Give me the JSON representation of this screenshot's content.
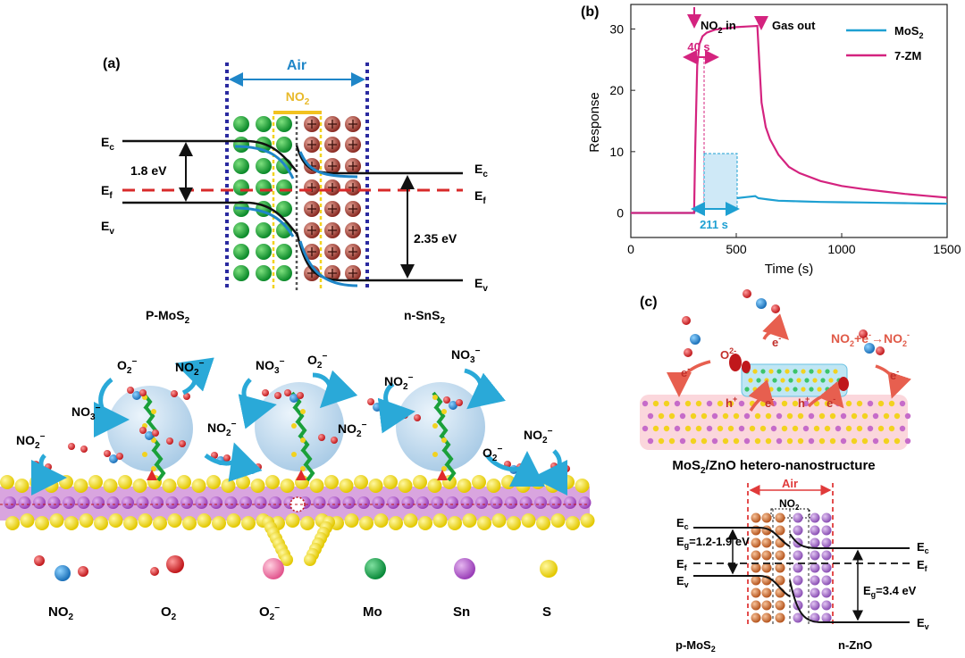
{
  "panel_a": {
    "label": "(a)",
    "air": "Air",
    "no2": "NO",
    "no2_sub": "2",
    "ec_left": "E",
    "ec_left_sub": "c",
    "ef_left": "E",
    "ef_left_sub": "f",
    "ev_left": "E",
    "ev_left_sub": "v",
    "ec_right": "E",
    "ec_right_sub": "c",
    "ef_right": "E",
    "ef_right_sub": "f",
    "ev_right": "E",
    "ev_right_sub": "v",
    "gap_left": "1.8 eV",
    "gap_right": "2.35 eV",
    "p_label": "P-MoS",
    "p_label_sub": "2",
    "n_label": "n-SnS",
    "n_label_sub": "2"
  },
  "panel_b": {
    "label": "(b)",
    "ann_no2_in": "NO",
    "ann_no2_in_sub": "2",
    "ann_no2_in_tail": " in",
    "ann_gas_out": "Gas out",
    "ann_40s": "40 s",
    "ann_211s": "211 s",
    "colors": {
      "mos2": "#1ea0d2",
      "zm": "#d4237f"
    }
  },
  "chart_data": {
    "type": "line",
    "xlabel": "Time (s)",
    "ylabel": "Response",
    "xlim": [
      0,
      1500
    ],
    "ylim": [
      -4,
      34
    ],
    "x_ticks": [
      "0",
      "500",
      "1000",
      "1500"
    ],
    "y_ticks": [
      "0",
      "10",
      "20",
      "30"
    ],
    "legend_position": "top-right",
    "series": [
      {
        "name": "MoS2",
        "legend_label": "MoS",
        "legend_sub": "2",
        "x": [
          0,
          300,
          305,
          350,
          400,
          450,
          500,
          550,
          590,
          605,
          650,
          700,
          800,
          900,
          1000,
          1100,
          1200,
          1300,
          1400,
          1500
        ],
        "y": [
          0,
          0,
          0.4,
          1.2,
          1.7,
          2.1,
          2.4,
          2.6,
          2.75,
          2.4,
          2.2,
          2.0,
          1.9,
          1.8,
          1.75,
          1.7,
          1.65,
          1.6,
          1.55,
          1.5
        ]
      },
      {
        "name": "7-ZM",
        "legend_label": "7-ZM",
        "legend_sub": "",
        "x": [
          0,
          300,
          305,
          315,
          325,
          340,
          360,
          400,
          450,
          500,
          550,
          600,
          610,
          620,
          640,
          660,
          700,
          750,
          800,
          900,
          1000,
          1100,
          1200,
          1300,
          1400,
          1500
        ],
        "y": [
          0,
          0,
          10,
          24,
          27.5,
          28.8,
          29.4,
          29.9,
          30.1,
          30.3,
          30.4,
          30.5,
          24,
          18,
          14,
          12,
          9.5,
          7.5,
          6.5,
          5.2,
          4.4,
          3.9,
          3.5,
          3.1,
          2.8,
          2.5
        ]
      }
    ]
  },
  "panel_c": {
    "label": "(c)",
    "reaction": "NO",
    "reaction_sub": "2",
    "reaction_mid": "+e",
    "reaction_sup": "-",
    "reaction_arrow": "→NO",
    "reaction_sub2": "2",
    "reaction_sup2": "-",
    "e_minus": "e",
    "o2_label": "O",
    "o2_sup": "2-",
    "h_plus": "h",
    "caption": "MoS",
    "caption_sub": "2",
    "caption_tail": "/ZnO hetero-nanostructure",
    "air": "Air",
    "no2": "NO",
    "no2_sub": "2",
    "ec_left": "E",
    "ec_left_sub": "c",
    "eg_left": "E",
    "eg_left_sub": "g",
    "eg_left_val": "=1.2-1.9 eV",
    "ef_left": "E",
    "ef_left_sub": "f",
    "ev_left": "E",
    "ev_left_sub": "v",
    "ec_right": "E",
    "ec_right_sub": "c",
    "ef_right": "E",
    "ef_right_sub": "f",
    "ev_right": "E",
    "ev_right_sub": "v",
    "eg_right": "E",
    "eg_right_sub": "g",
    "eg_right_val": "=3.4 eV",
    "p_label": "p-MoS",
    "p_label_sub": "2",
    "n_label": "n-ZnO"
  },
  "molecule_labels": {
    "no3": "NO",
    "no3_sub": "3",
    "no3_sup": "−",
    "no2": "NO",
    "no2_sub": "2",
    "no2_sup": "−",
    "o2": "O",
    "o2_sub": "2",
    "o2_sup": "−"
  },
  "legend_bottom": [
    {
      "name": "NO2",
      "text": "NO",
      "sub": "2",
      "sup": ""
    },
    {
      "name": "O2",
      "text": "O",
      "sub": "2",
      "sup": ""
    },
    {
      "name": "O2-",
      "text": "O",
      "sub": "2",
      "sup": "−"
    },
    {
      "name": "Mo",
      "text": "Mo",
      "sub": "",
      "sup": ""
    },
    {
      "name": "Sn",
      "text": "Sn",
      "sub": "",
      "sup": ""
    },
    {
      "name": "S",
      "text": "S",
      "sub": "",
      "sup": ""
    }
  ]
}
